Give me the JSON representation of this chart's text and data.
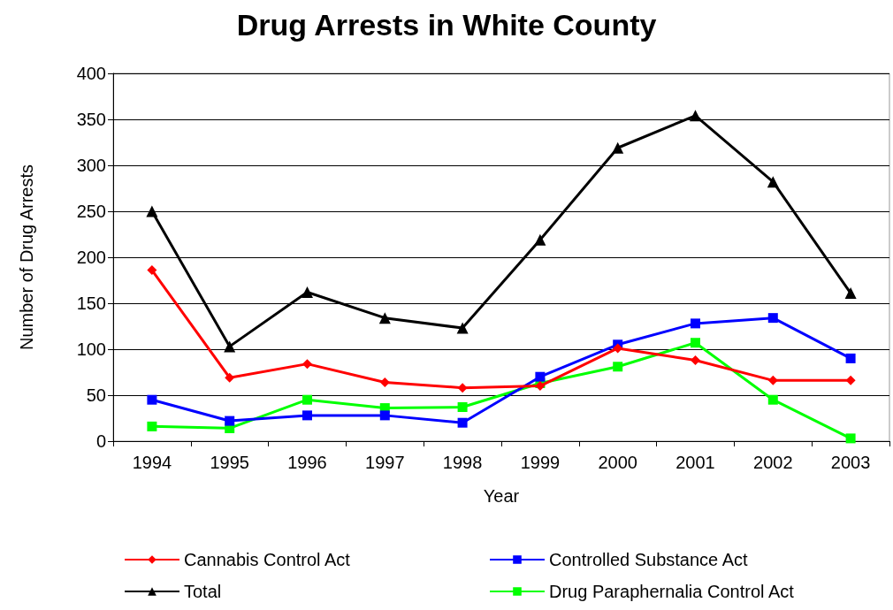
{
  "chart_data": {
    "type": "line",
    "title": "Drug Arrests in White County",
    "xlabel": "Year",
    "ylabel": "Number of Drug Arrests",
    "categories": [
      "1994",
      "1995",
      "1996",
      "1997",
      "1998",
      "1999",
      "2000",
      "2001",
      "2002",
      "2003"
    ],
    "series": [
      {
        "name": "Cannabis Control Act",
        "color": "#ff0000",
        "marker": "diamond",
        "values": [
          186,
          69,
          84,
          64,
          58,
          60,
          101,
          88,
          66,
          66
        ]
      },
      {
        "name": "Controlled Substance Act",
        "color": "#0000ff",
        "marker": "square",
        "values": [
          45,
          22,
          28,
          28,
          20,
          70,
          105,
          128,
          134,
          90
        ]
      },
      {
        "name": "Total",
        "color": "#000000",
        "marker": "triangle",
        "values": [
          250,
          103,
          162,
          134,
          123,
          219,
          319,
          354,
          282,
          161
        ]
      },
      {
        "name": "Drug Paraphernalia Control Act",
        "color": "#00ff00",
        "marker": "square",
        "values": [
          16,
          14,
          45,
          36,
          37,
          63,
          81,
          107,
          45,
          3
        ]
      }
    ],
    "ylim": [
      0,
      400
    ],
    "yticks": [
      0,
      50,
      100,
      150,
      200,
      250,
      300,
      350,
      400
    ],
    "grid": "y",
    "legend": "bottom",
    "line_style": "solid"
  }
}
